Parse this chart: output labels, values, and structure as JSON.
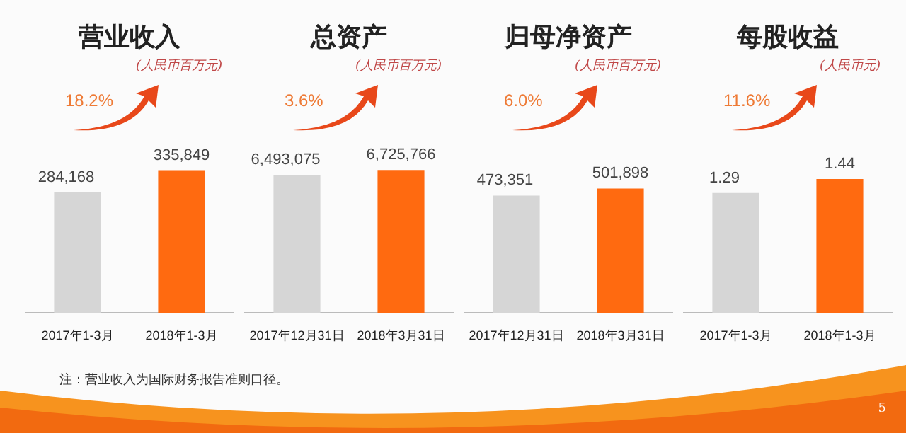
{
  "chart_data": [
    {
      "type": "bar",
      "title": "营业收入",
      "subtitle": "(人民币百万元)",
      "categories": [
        "2017年1-3月",
        "2018年1-3月"
      ],
      "values": [
        284168,
        335849
      ],
      "value_labels": [
        "284,168",
        "335,849"
      ],
      "colors": [
        "#d6d6d6",
        "#ff6a10"
      ],
      "annotations": [
        "18.2%",
        "注：营业收入为国际财务报告准则口径。"
      ]
    },
    {
      "type": "bar",
      "title": "总资产",
      "subtitle": "(人民币百万元)",
      "categories": [
        "2017年12月31日",
        "2018年3月31日"
      ],
      "values": [
        6493075,
        6725766
      ],
      "value_labels": [
        "6,493,075",
        "6,725,766"
      ],
      "colors": [
        "#d6d6d6",
        "#ff6a10"
      ],
      "annotations": [
        "3.6%"
      ]
    },
    {
      "type": "bar",
      "title": "归母净资产",
      "subtitle": "(人民币百万元)",
      "categories": [
        "2017年12月31日",
        "2018年3月31日"
      ],
      "values": [
        473351,
        501898
      ],
      "value_labels": [
        "473,351",
        "501,898"
      ],
      "colors": [
        "#d6d6d6",
        "#ff6a10"
      ],
      "annotations": [
        "6.0%"
      ]
    },
    {
      "type": "bar",
      "title": "每股收益",
      "subtitle": "(人民币元)",
      "categories": [
        "2017年1-3月",
        "2018年1-3月"
      ],
      "values": [
        1.29,
        1.44
      ],
      "value_labels": [
        "1.29",
        "1.44"
      ],
      "colors": [
        "#d6d6d6",
        "#ff6a10"
      ],
      "annotations": [
        "11.6%",
        "5"
      ]
    }
  ]
}
